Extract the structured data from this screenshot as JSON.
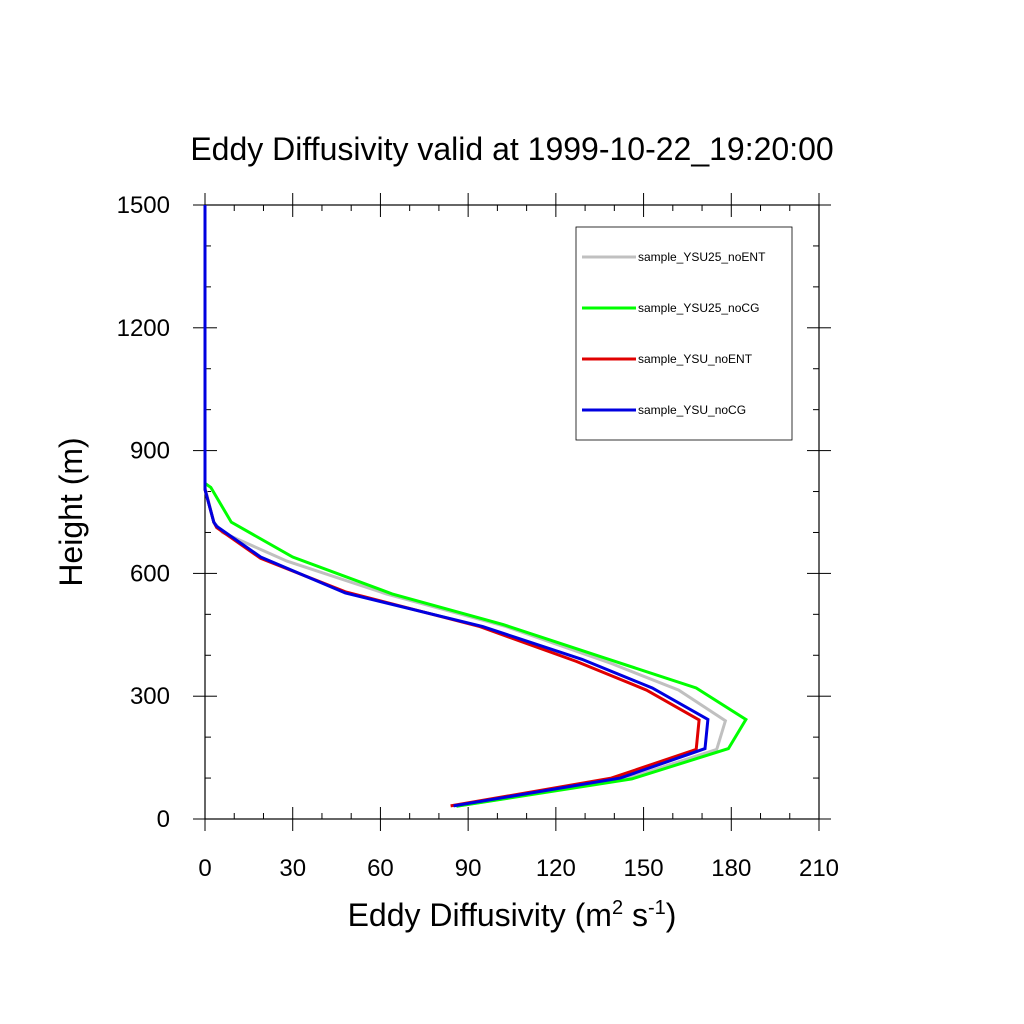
{
  "chart_data": {
    "type": "line",
    "title": "Eddy Diffusivity valid at 1999-10-22_19:20:00",
    "xlabel": {
      "main": "Eddy Diffusivity (m",
      "sup1": "2",
      "mid": " s",
      "sup2": "-1",
      "end": ")"
    },
    "ylabel": "Height (m)",
    "xlim": [
      0,
      210
    ],
    "ylim": [
      0,
      1500
    ],
    "x_ticks": [
      0,
      30,
      60,
      90,
      120,
      150,
      180,
      210
    ],
    "y_ticks": [
      0,
      300,
      600,
      900,
      1200,
      1500
    ],
    "legend_placement": "top-right",
    "series": [
      {
        "name": "sample_YSU25_noENT",
        "color": "#c0c0c0",
        "points": [
          [
            86,
            31
          ],
          [
            144,
            98
          ],
          [
            175,
            170
          ],
          [
            178,
            240
          ],
          [
            162,
            315
          ],
          [
            139,
            380
          ],
          [
            103,
            470
          ],
          [
            62,
            550
          ],
          [
            28,
            630
          ],
          [
            6,
            700
          ],
          [
            3,
            725
          ],
          [
            0,
            810
          ],
          [
            0,
            820
          ],
          [
            0,
            1500
          ]
        ]
      },
      {
        "name": "sample_YSU25_noCG",
        "color": "#00ff00",
        "points": [
          [
            86,
            31
          ],
          [
            146,
            98
          ],
          [
            179,
            172
          ],
          [
            185,
            243
          ],
          [
            168,
            320
          ],
          [
            136,
            395
          ],
          [
            102,
            475
          ],
          [
            64,
            550
          ],
          [
            30,
            640
          ],
          [
            9,
            725
          ],
          [
            2,
            810
          ],
          [
            0,
            820
          ],
          [
            0,
            1500
          ]
        ]
      },
      {
        "name": "sample_YSU_noENT",
        "color": "#e00000",
        "points": [
          [
            84,
            32
          ],
          [
            139,
            100
          ],
          [
            168,
            170
          ],
          [
            169,
            242
          ],
          [
            151,
            315
          ],
          [
            127,
            385
          ],
          [
            94,
            470
          ],
          [
            48,
            555
          ],
          [
            19,
            637
          ],
          [
            4,
            712
          ],
          [
            3,
            725
          ],
          [
            0,
            805
          ],
          [
            0,
            820
          ],
          [
            0,
            1500
          ]
        ]
      },
      {
        "name": "sample_YSU_noCG",
        "color": "#0000e0",
        "points": [
          [
            85,
            32
          ],
          [
            142,
            100
          ],
          [
            171,
            172
          ],
          [
            172,
            243
          ],
          [
            153,
            320
          ],
          [
            129,
            390
          ],
          [
            95,
            470
          ],
          [
            48,
            552
          ],
          [
            19,
            640
          ],
          [
            4,
            715
          ],
          [
            3,
            725
          ],
          [
            0,
            805
          ],
          [
            0,
            820
          ],
          [
            0,
            1500
          ]
        ]
      }
    ]
  }
}
